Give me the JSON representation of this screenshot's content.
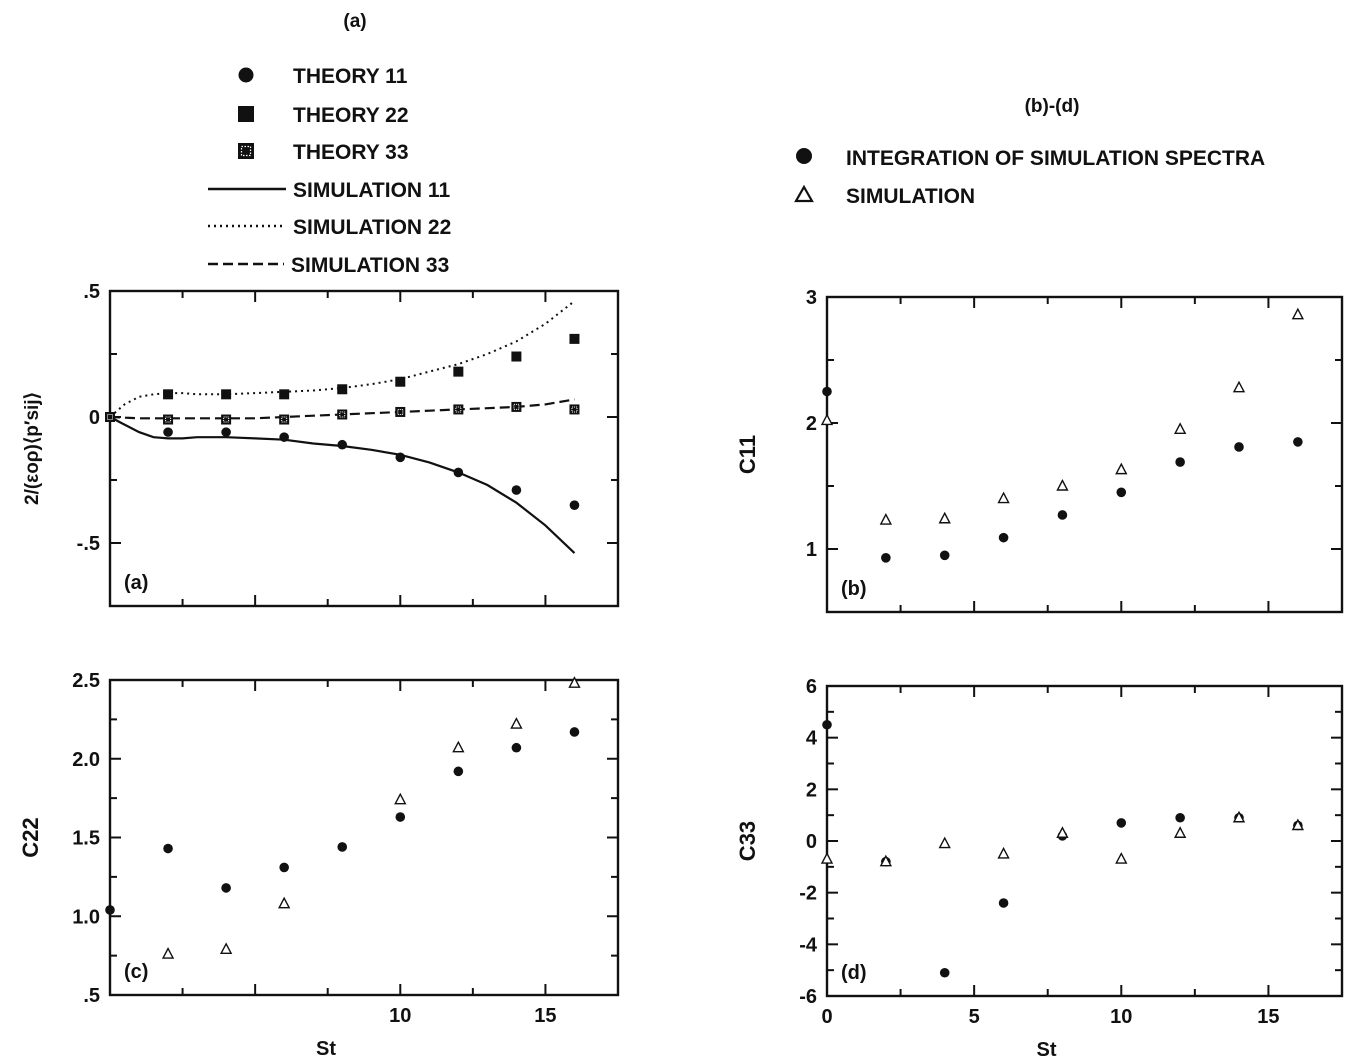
{
  "header_a": "(a)",
  "header_bd": "(b)-(d)",
  "legend_a": [
    {
      "label": "THEORY 11",
      "marker": "circle"
    },
    {
      "label": "THEORY 22",
      "marker": "square"
    },
    {
      "label": "THEORY 33",
      "marker": "square-dotted"
    },
    {
      "label": "SIMULATION 11",
      "line": "solid"
    },
    {
      "label": "SIMULATION 22",
      "line": "dotted"
    },
    {
      "label": "SIMULATION 33",
      "line": "dashed"
    }
  ],
  "legend_bd": [
    {
      "label": "INTEGRATION OF SIMULATION SPECTRA",
      "marker": "circle"
    },
    {
      "label": "SIMULATION",
      "marker": "triangle"
    }
  ],
  "chart_data": [
    {
      "id": "a",
      "type": "line",
      "panel_label": "(a)",
      "ylabel": "2/(εoρ)⟨p′sij⟩",
      "xlabel": "",
      "xlim": [
        0,
        17.5
      ],
      "ylim": [
        -0.75,
        0.5
      ],
      "yticks": [
        {
          "v": 0.5,
          "t": ".5"
        },
        {
          "v": 0,
          "t": "0"
        },
        {
          "v": -0.5,
          "t": "-.5"
        }
      ],
      "xticks": [],
      "points_series": [
        {
          "name": "THEORY 11",
          "marker": "circle",
          "x": [
            0,
            2,
            4,
            6,
            8,
            10,
            12,
            14,
            16
          ],
          "y": [
            0.0,
            -0.06,
            -0.06,
            -0.08,
            -0.11,
            -0.16,
            -0.22,
            -0.29,
            -0.35
          ]
        },
        {
          "name": "THEORY 22",
          "marker": "square",
          "x": [
            0,
            2,
            4,
            6,
            8,
            10,
            12,
            14,
            16
          ],
          "y": [
            0.0,
            0.09,
            0.09,
            0.09,
            0.11,
            0.14,
            0.18,
            0.24,
            0.31
          ]
        },
        {
          "name": "THEORY 33",
          "marker": "square-dotted",
          "x": [
            0,
            2,
            4,
            6,
            8,
            10,
            12,
            14,
            16
          ],
          "y": [
            0.0,
            -0.01,
            -0.01,
            -0.01,
            0.01,
            0.02,
            0.03,
            0.04,
            0.03
          ]
        }
      ],
      "line_series": [
        {
          "name": "SIMULATION 11",
          "dash": "solid",
          "x": [
            0,
            0.5,
            1,
            1.5,
            2,
            2.5,
            3,
            4,
            5,
            6,
            7,
            8,
            9,
            10,
            11,
            12,
            13,
            14,
            15,
            16
          ],
          "y": [
            0.0,
            -0.03,
            -0.06,
            -0.08,
            -0.085,
            -0.085,
            -0.08,
            -0.08,
            -0.085,
            -0.09,
            -0.105,
            -0.115,
            -0.13,
            -0.15,
            -0.18,
            -0.22,
            -0.27,
            -0.34,
            -0.43,
            -0.54
          ]
        },
        {
          "name": "SIMULATION 22",
          "dash": "dotted",
          "x": [
            0,
            0.5,
            1,
            1.5,
            2,
            2.5,
            3,
            4,
            5,
            6,
            7,
            8,
            9,
            10,
            11,
            12,
            13,
            14,
            15,
            16
          ],
          "y": [
            0.0,
            0.05,
            0.08,
            0.09,
            0.095,
            0.095,
            0.09,
            0.09,
            0.095,
            0.1,
            0.105,
            0.115,
            0.13,
            0.15,
            0.18,
            0.21,
            0.25,
            0.3,
            0.37,
            0.46
          ]
        },
        {
          "name": "SIMULATION 33",
          "dash": "dashed",
          "x": [
            0,
            1,
            2,
            3,
            4,
            5,
            6,
            7,
            8,
            9,
            10,
            11,
            12,
            13,
            14,
            15,
            16
          ],
          "y": [
            0.0,
            -0.005,
            -0.005,
            -0.005,
            -0.005,
            -0.005,
            0.0,
            0.005,
            0.01,
            0.015,
            0.02,
            0.025,
            0.03,
            0.035,
            0.04,
            0.05,
            0.07
          ]
        }
      ]
    },
    {
      "id": "b",
      "type": "scatter",
      "panel_label": "(b)",
      "ylabel": "C11",
      "xlabel": "",
      "xlim": [
        0,
        17.5
      ],
      "ylim": [
        0.5,
        3
      ],
      "yticks": [
        {
          "v": 3,
          "t": "3"
        },
        {
          "v": 2,
          "t": "2"
        },
        {
          "v": 1,
          "t": "1"
        }
      ],
      "xticks": [],
      "points_series": [
        {
          "name": "INTEGRATION OF SIMULATION SPECTRA",
          "marker": "circle",
          "x": [
            0,
            2,
            4,
            6,
            8,
            10,
            12,
            14,
            16
          ],
          "y": [
            2.25,
            0.93,
            0.95,
            1.09,
            1.27,
            1.45,
            1.69,
            1.81,
            1.85
          ]
        },
        {
          "name": "SIMULATION",
          "marker": "triangle",
          "x": [
            0,
            2,
            4,
            6,
            8,
            10,
            12,
            14,
            16
          ],
          "y": [
            2.02,
            1.23,
            1.24,
            1.4,
            1.5,
            1.63,
            1.95,
            2.28,
            2.86
          ]
        }
      ]
    },
    {
      "id": "c",
      "type": "scatter",
      "panel_label": "(c)",
      "ylabel": "C22",
      "xlabel": "St",
      "xlim": [
        0,
        17.5
      ],
      "ylim": [
        0.5,
        2.5
      ],
      "yticks": [
        {
          "v": 2.5,
          "t": "2.5"
        },
        {
          "v": 2.0,
          "t": "2.0"
        },
        {
          "v": 1.5,
          "t": "1.5"
        },
        {
          "v": 1.0,
          "t": "1.0"
        },
        {
          "v": 0.5,
          "t": ".5"
        }
      ],
      "xticks": [
        {
          "v": 10,
          "t": "10"
        },
        {
          "v": 15,
          "t": "15"
        }
      ],
      "points_series": [
        {
          "name": "INTEGRATION OF SIMULATION SPECTRA",
          "marker": "circle",
          "x": [
            0,
            2,
            4,
            6,
            8,
            10,
            12,
            14,
            16
          ],
          "y": [
            1.04,
            1.43,
            1.18,
            1.31,
            1.44,
            1.63,
            1.92,
            2.07,
            2.17
          ]
        },
        {
          "name": "SIMULATION",
          "marker": "triangle",
          "x": [
            2,
            4,
            6,
            10,
            12,
            14,
            16
          ],
          "y": [
            0.76,
            0.79,
            1.08,
            1.74,
            2.07,
            2.22,
            2.48
          ]
        }
      ]
    },
    {
      "id": "d",
      "type": "scatter",
      "panel_label": "(d)",
      "ylabel": "C33",
      "xlabel": "St",
      "xlim": [
        0,
        17.5
      ],
      "ylim": [
        -6,
        6
      ],
      "yticks": [
        {
          "v": 6,
          "t": "6"
        },
        {
          "v": 4,
          "t": "4"
        },
        {
          "v": 2,
          "t": "2"
        },
        {
          "v": 0,
          "t": "0"
        },
        {
          "v": -2,
          "t": "-2"
        },
        {
          "v": -4,
          "t": "-4"
        },
        {
          "v": -6,
          "t": "-6"
        }
      ],
      "xticks": [
        {
          "v": 0,
          "t": "0"
        },
        {
          "v": 5,
          "t": "5"
        },
        {
          "v": 10,
          "t": "10"
        },
        {
          "v": 15,
          "t": "15"
        }
      ],
      "points_series": [
        {
          "name": "INTEGRATION OF SIMULATION SPECTRA",
          "marker": "circle",
          "x": [
            0,
            2,
            4,
            6,
            8,
            10,
            12,
            14,
            16
          ],
          "y": [
            4.5,
            -0.8,
            -5.1,
            -2.4,
            0.2,
            0.7,
            0.9,
            0.9,
            0.6
          ]
        },
        {
          "name": "SIMULATION",
          "marker": "triangle",
          "x": [
            0,
            2,
            4,
            6,
            8,
            10,
            12,
            14,
            16
          ],
          "y": [
            -0.7,
            -0.8,
            -0.1,
            -0.5,
            0.3,
            -0.7,
            0.3,
            0.9,
            0.6
          ]
        }
      ]
    }
  ]
}
